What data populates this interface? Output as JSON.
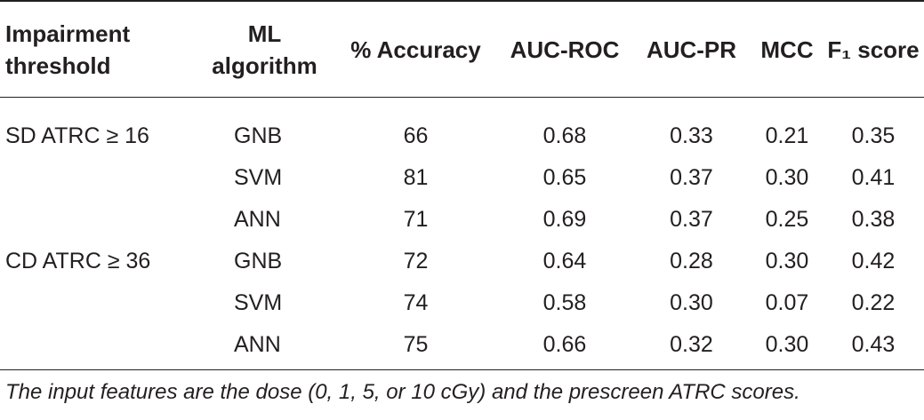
{
  "table": {
    "header": [
      "Impairment threshold",
      "ML algorithm",
      "% Accuracy",
      "AUC-ROC",
      "AUC-PR",
      "MCC",
      "F₁ score"
    ],
    "rows": [
      [
        "SD ATRC ≥ 16",
        "GNB",
        "66",
        "0.68",
        "0.33",
        "0.21",
        "0.35"
      ],
      [
        null,
        "SVM",
        "81",
        "0.65",
        "0.37",
        "0.30",
        "0.41"
      ],
      [
        null,
        "ANN",
        "71",
        "0.69",
        "0.37",
        "0.25",
        "0.38"
      ],
      [
        "CD ATRC ≥ 36",
        "GNB",
        "72",
        "0.64",
        "0.28",
        "0.30",
        "0.42"
      ],
      [
        null,
        "SVM",
        "74",
        "0.58",
        "0.30",
        "0.07",
        "0.22"
      ],
      [
        null,
        "ANN",
        "75",
        "0.66",
        "0.32",
        "0.30",
        "0.43"
      ]
    ]
  },
  "footnote": "The input features are the dose (0, 1, 5, or 10 cGy) and the prescreen ATRC scores."
}
